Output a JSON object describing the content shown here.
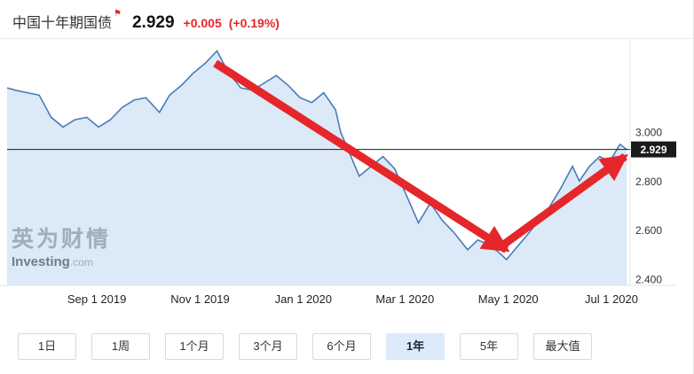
{
  "header": {
    "title": "中国十年期国债",
    "flag_icon": "⚑",
    "price": "2.929",
    "change": "+0.005",
    "change_pct": "(+0.19%)"
  },
  "watermark": {
    "cn": "英为财情",
    "en": "Investing",
    "domain": ".com"
  },
  "colors": {
    "up_red": "#e8262a",
    "line_blue": "#4a7bb7",
    "area_fill": "#dce9f6",
    "annotation_red": "#e5262b",
    "badge_bg": "#1a1a1a",
    "active_range_bg": "#ddeafa"
  },
  "toolbar": {
    "ranges": [
      {
        "id": "1d",
        "label": "1日",
        "active": false
      },
      {
        "id": "1w",
        "label": "1周",
        "active": false
      },
      {
        "id": "1m",
        "label": "1个月",
        "active": false
      },
      {
        "id": "3m",
        "label": "3个月",
        "active": false
      },
      {
        "id": "6m",
        "label": "6个月",
        "active": false
      },
      {
        "id": "1y",
        "label": "1年",
        "active": true
      },
      {
        "id": "5y",
        "label": "5年",
        "active": false
      },
      {
        "id": "max",
        "label": "最大值",
        "active": false
      }
    ]
  },
  "chart_data": {
    "type": "area",
    "instrument": "中国十年期国债",
    "range": "1年",
    "x_range": [
      "2019-07-10",
      "2020-07-12"
    ],
    "ylim": [
      2.375,
      3.35
    ],
    "grid": false,
    "legend": "none",
    "points": [
      [
        "2019-07-10",
        3.18
      ],
      [
        "2019-07-15",
        3.17
      ],
      [
        "2019-07-22",
        3.16
      ],
      [
        "2019-07-29",
        3.15
      ],
      [
        "2019-08-05",
        3.06
      ],
      [
        "2019-08-12",
        3.02
      ],
      [
        "2019-08-19",
        3.05
      ],
      [
        "2019-08-26",
        3.06
      ],
      [
        "2019-09-02",
        3.02
      ],
      [
        "2019-09-09",
        3.05
      ],
      [
        "2019-09-16",
        3.1
      ],
      [
        "2019-09-23",
        3.13
      ],
      [
        "2019-09-30",
        3.14
      ],
      [
        "2019-10-08",
        3.08
      ],
      [
        "2019-10-14",
        3.15
      ],
      [
        "2019-10-21",
        3.19
      ],
      [
        "2019-10-28",
        3.24
      ],
      [
        "2019-11-04",
        3.28
      ],
      [
        "2019-11-11",
        3.33
      ],
      [
        "2019-11-14",
        3.29
      ],
      [
        "2019-11-18",
        3.24
      ],
      [
        "2019-11-25",
        3.18
      ],
      [
        "2019-12-02",
        3.17
      ],
      [
        "2019-12-09",
        3.2
      ],
      [
        "2019-12-16",
        3.23
      ],
      [
        "2019-12-23",
        3.19
      ],
      [
        "2019-12-30",
        3.14
      ],
      [
        "2020-01-06",
        3.12
      ],
      [
        "2020-01-13",
        3.16
      ],
      [
        "2020-01-20",
        3.09
      ],
      [
        "2020-01-23",
        3.0
      ],
      [
        "2020-02-03",
        2.82
      ],
      [
        "2020-02-10",
        2.86
      ],
      [
        "2020-02-17",
        2.9
      ],
      [
        "2020-02-24",
        2.85
      ],
      [
        "2020-03-02",
        2.74
      ],
      [
        "2020-03-09",
        2.63
      ],
      [
        "2020-03-16",
        2.71
      ],
      [
        "2020-03-23",
        2.64
      ],
      [
        "2020-03-30",
        2.59
      ],
      [
        "2020-04-07",
        2.52
      ],
      [
        "2020-04-13",
        2.56
      ],
      [
        "2020-04-20",
        2.54
      ],
      [
        "2020-04-27",
        2.5
      ],
      [
        "2020-04-30",
        2.48
      ],
      [
        "2020-05-06",
        2.53
      ],
      [
        "2020-05-11",
        2.57
      ],
      [
        "2020-05-18",
        2.63
      ],
      [
        "2020-05-25",
        2.69
      ],
      [
        "2020-06-01",
        2.77
      ],
      [
        "2020-06-08",
        2.86
      ],
      [
        "2020-06-12",
        2.8
      ],
      [
        "2020-06-18",
        2.86
      ],
      [
        "2020-06-24",
        2.9
      ],
      [
        "2020-06-30",
        2.88
      ],
      [
        "2020-07-06",
        2.95
      ],
      [
        "2020-07-10",
        2.929
      ]
    ],
    "x_ticks": [
      {
        "label": "Sep 1 2019",
        "date": "2019-09-01"
      },
      {
        "label": "Nov 1 2019",
        "date": "2019-11-01"
      },
      {
        "label": "Jan 1 2020",
        "date": "2020-01-01"
      },
      {
        "label": "Mar 1 2020",
        "date": "2020-03-01"
      },
      {
        "label": "May 1 2020",
        "date": "2020-05-01"
      },
      {
        "label": "Jul 1 2020",
        "date": "2020-07-01"
      }
    ],
    "y_ticks": [
      {
        "label": "3.000",
        "value": 3.0
      },
      {
        "label": "2.800",
        "value": 2.8
      },
      {
        "label": "2.600",
        "value": 2.6
      },
      {
        "label": "2.400",
        "value": 2.4
      }
    ],
    "current_value": 2.929,
    "current_label": "2.929",
    "annotations": [
      {
        "type": "arrow",
        "from": {
          "date": "2019-11-10",
          "value": 3.28
        },
        "to": {
          "date": "2020-04-30",
          "value": 2.52
        }
      },
      {
        "type": "arrow",
        "from": {
          "date": "2020-04-26",
          "value": 2.53
        },
        "to": {
          "date": "2020-07-09",
          "value": 2.9
        }
      }
    ]
  }
}
